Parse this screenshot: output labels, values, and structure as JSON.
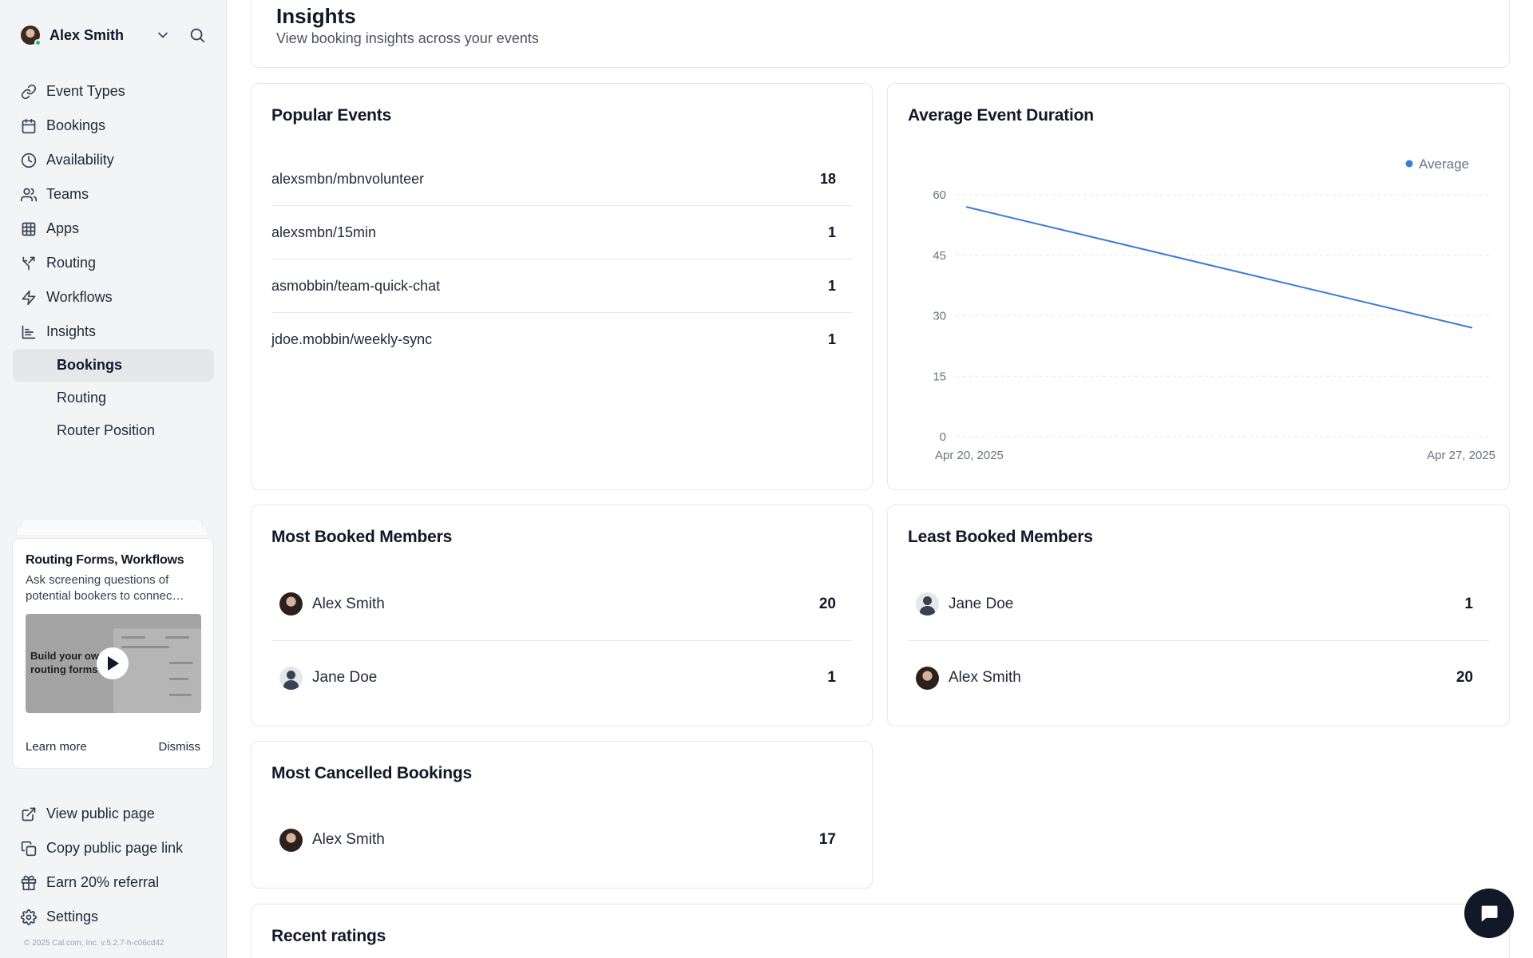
{
  "user": {
    "name": "Alex Smith"
  },
  "nav": {
    "items": [
      {
        "label": "Event Types",
        "icon": "link-icon"
      },
      {
        "label": "Bookings",
        "icon": "calendar-icon"
      },
      {
        "label": "Availability",
        "icon": "clock-icon"
      },
      {
        "label": "Teams",
        "icon": "users-icon"
      },
      {
        "label": "Apps",
        "icon": "grid-icon"
      },
      {
        "label": "Routing",
        "icon": "routing-icon"
      },
      {
        "label": "Workflows",
        "icon": "zap-icon"
      },
      {
        "label": "Insights",
        "icon": "bar-chart-icon"
      }
    ],
    "insights_sub": [
      {
        "label": "Bookings",
        "active": true
      },
      {
        "label": "Routing",
        "active": false
      },
      {
        "label": "Router Position",
        "active": false
      }
    ]
  },
  "promo": {
    "title": "Routing Forms, Workflows",
    "description": "Ask screening questions of potential bookers to connec…",
    "video_text": "Build your own routing forms",
    "learn_more": "Learn more",
    "dismiss": "Dismiss"
  },
  "bottom_nav": [
    {
      "label": "View public page",
      "icon": "external-link-icon"
    },
    {
      "label": "Copy public page link",
      "icon": "copy-icon"
    },
    {
      "label": "Earn 20% referral",
      "icon": "gift-icon"
    },
    {
      "label": "Settings",
      "icon": "gear-icon"
    }
  ],
  "copyright": "© 2025 Cal.com, Inc. v.5.2.7-h-c06cd42",
  "header": {
    "title": "Insights",
    "subtitle": "View booking insights across your events"
  },
  "popular_events": {
    "title": "Popular Events",
    "rows": [
      {
        "name": "alexsmbn/mbnvolunteer",
        "count": "18"
      },
      {
        "name": "alexsmbn/15min",
        "count": "1"
      },
      {
        "name": "asmobbin/team-quick-chat",
        "count": "1"
      },
      {
        "name": "jdoe.mobbin/weekly-sync",
        "count": "1"
      }
    ]
  },
  "avg_duration": {
    "title": "Average Event Duration"
  },
  "chart_data": {
    "type": "line",
    "title": "Average Event Duration",
    "x": [
      "Apr 20, 2025",
      "Apr 27, 2025"
    ],
    "series": [
      {
        "name": "Average",
        "values": [
          57,
          27
        ],
        "color": "#3b7bd9"
      }
    ],
    "yticks": [
      "0",
      "15",
      "30",
      "45",
      "60"
    ],
    "ylim": [
      0,
      60
    ],
    "grid": true,
    "legend": "top-right"
  },
  "most_booked": {
    "title": "Most Booked Members",
    "rows": [
      {
        "name": "Alex Smith",
        "count": "20",
        "avatar": "alex"
      },
      {
        "name": "Jane Doe",
        "count": "1",
        "avatar": "jane"
      }
    ]
  },
  "least_booked": {
    "title": "Least Booked Members",
    "rows": [
      {
        "name": "Jane Doe",
        "count": "1",
        "avatar": "jane"
      },
      {
        "name": "Alex Smith",
        "count": "20",
        "avatar": "alex"
      }
    ]
  },
  "most_cancelled": {
    "title": "Most Cancelled Bookings",
    "rows": [
      {
        "name": "Alex Smith",
        "count": "17",
        "avatar": "alex"
      }
    ]
  },
  "recent_ratings": {
    "title": "Recent ratings"
  }
}
